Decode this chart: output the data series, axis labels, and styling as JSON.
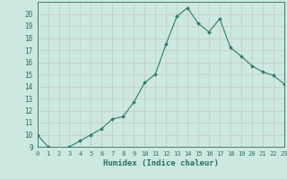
{
  "x": [
    0,
    1,
    2,
    3,
    4,
    5,
    6,
    7,
    8,
    9,
    10,
    11,
    12,
    13,
    14,
    15,
    16,
    17,
    18,
    19,
    20,
    21,
    22,
    23
  ],
  "y": [
    10,
    9,
    8.8,
    9,
    9.5,
    10,
    10.5,
    11.3,
    11.5,
    12.7,
    14.3,
    15,
    17.5,
    19.8,
    20.5,
    19.2,
    18.5,
    19.6,
    17.2,
    16.5,
    15.7,
    15.2,
    14.9,
    14.2
  ],
  "line_color": "#2d7d6e",
  "marker": "D",
  "marker_size": 2.0,
  "bg_color": "#cce8e0",
  "grid_color_minor": "#b8d8d0",
  "grid_color_major": "#c8c0b8",
  "xlabel": "Humidex (Indice chaleur)",
  "ylim": [
    9,
    21
  ],
  "xlim": [
    0,
    23
  ],
  "yticks": [
    9,
    10,
    11,
    12,
    13,
    14,
    15,
    16,
    17,
    18,
    19,
    20
  ],
  "xticks": [
    0,
    1,
    2,
    3,
    4,
    5,
    6,
    7,
    8,
    9,
    10,
    11,
    12,
    13,
    14,
    15,
    16,
    17,
    18,
    19,
    20,
    21,
    22,
    23
  ],
  "tick_label_color": "#2d6e60",
  "axis_color": "#2d6e60",
  "xlabel_color": "#2d6e60"
}
